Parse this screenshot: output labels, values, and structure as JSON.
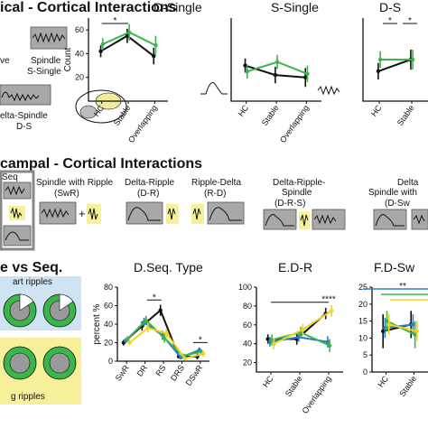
{
  "colors": {
    "black": "#111111",
    "green": "#3ab54a",
    "blue": "#2b7ec9",
    "yellow": "#f2d21b",
    "grey_box": "#a8a8a8",
    "yellow_box": "#f7f09a"
  },
  "sections": {
    "top_title": "ical - Cortical Interactions",
    "mid_title": "campal - Cortical Interactions",
    "bottom_left_title": "e vs Seq."
  },
  "top_left": {
    "wave_label": "ve",
    "spindle_label": "Spindle",
    "s_single_label": "S-Single",
    "delta_spindle_label": "elta-Spindle",
    "ds_label": "D-S"
  },
  "mid": {
    "seq_label": "Seq",
    "events": [
      {
        "name": "Spindle with Ripple",
        "abbr": "(SwR)"
      },
      {
        "name": "Delta-Ripple",
        "abbr": "(D-R)"
      },
      {
        "name": "Ripple-Delta",
        "abbr": "(R-D)"
      },
      {
        "name": "Delta-Ripple-\nSpindle",
        "abbr": "(D-R-S)"
      },
      {
        "name": "Delta\nSpindle with",
        "abbr": "(D-Sw"
      }
    ]
  },
  "bottom_left": {
    "label_top": "art ripples",
    "label_bottom": "g ripples"
  },
  "chart_data": [
    {
      "type": "line",
      "title": "D-Single",
      "ylabel": "Count",
      "categories": [
        "HC",
        "Stable",
        "Overlapping"
      ],
      "series": [
        {
          "color": "#111111",
          "values": [
            42,
            55,
            38
          ],
          "err": [
            5,
            6,
            7
          ]
        },
        {
          "color": "#3ab54a",
          "values": [
            48,
            58,
            47
          ],
          "err": [
            5,
            7,
            8
          ]
        }
      ],
      "annotations": [
        "*"
      ]
    },
    {
      "type": "line",
      "title": "S-Single",
      "categories": [
        "HC",
        "Stable",
        "Overlapping"
      ],
      "series": [
        {
          "color": "#111111",
          "values": [
            30,
            22,
            20
          ],
          "err": [
            6,
            7,
            8
          ]
        },
        {
          "color": "#3ab54a",
          "values": [
            25,
            33,
            23
          ],
          "err": [
            6,
            6,
            7
          ]
        }
      ]
    },
    {
      "type": "line",
      "title": "D-S",
      "categories": [
        "HC",
        "Stable"
      ],
      "series": [
        {
          "color": "#111111",
          "values": [
            18,
            25
          ],
          "err": [
            5,
            6
          ]
        },
        {
          "color": "#3ab54a",
          "values": [
            25,
            25
          ],
          "err": [
            5,
            6
          ]
        }
      ],
      "annotations": [
        "*",
        "*"
      ]
    },
    {
      "type": "line",
      "title": "D.Seq. Type",
      "ylabel": "percent %",
      "ylim": [
        0,
        80
      ],
      "yticks": [
        0,
        20,
        40,
        60,
        80
      ],
      "categories": [
        "SwR",
        "DR",
        "RS",
        "DRS",
        "DSwR"
      ],
      "series": [
        {
          "color": "#111111",
          "values": [
            20,
            38,
            55,
            5,
            5
          ],
          "err": [
            3,
            5,
            6,
            2,
            3
          ]
        },
        {
          "color": "#2b7ec9",
          "values": [
            22,
            42,
            28,
            4,
            12
          ],
          "err": [
            3,
            5,
            5,
            2,
            3
          ]
        },
        {
          "color": "#3ab54a",
          "values": [
            24,
            44,
            25,
            6,
            10
          ],
          "err": [
            3,
            5,
            5,
            2,
            3
          ]
        },
        {
          "color": "#f2d21b",
          "values": [
            20,
            36,
            30,
            3,
            8
          ],
          "err": [
            3,
            5,
            5,
            2,
            3
          ]
        }
      ],
      "annotations": [
        "*",
        "*"
      ]
    },
    {
      "type": "line",
      "title": "E.D-R",
      "ylim": [
        0,
        100
      ],
      "yticks": [
        20,
        40,
        60,
        80,
        100
      ],
      "categories": [
        "HC",
        "Stable",
        "Overlapping"
      ],
      "series": [
        {
          "color": "#111111",
          "values": [
            45,
            45,
            72
          ],
          "err": [
            5,
            6,
            6
          ]
        },
        {
          "color": "#2b7ec9",
          "values": [
            42,
            47,
            42
          ],
          "err": [
            5,
            5,
            6
          ]
        },
        {
          "color": "#3ab54a",
          "values": [
            44,
            52,
            38
          ],
          "err": [
            6,
            6,
            7
          ]
        },
        {
          "color": "#f2d21b",
          "values": [
            40,
            55,
            75
          ],
          "err": [
            6,
            6,
            6
          ]
        }
      ],
      "annotations": [
        "****"
      ]
    },
    {
      "type": "line",
      "title": "F.D-Sw",
      "ylim": [
        0,
        25
      ],
      "yticks": [
        0,
        5,
        10,
        15,
        20,
        25
      ],
      "categories": [
        "HC",
        "Stable"
      ],
      "series": [
        {
          "color": "#111111",
          "values": [
            12,
            14
          ],
          "err": [
            5,
            4
          ]
        },
        {
          "color": "#2b7ec9",
          "values": [
            13,
            14
          ],
          "err": [
            3,
            3
          ]
        },
        {
          "color": "#3ab54a",
          "values": [
            15,
            11
          ],
          "err": [
            3,
            4
          ]
        },
        {
          "color": "#f2d21b",
          "values": [
            14,
            12
          ],
          "err": [
            3,
            3
          ]
        }
      ],
      "annotations": [
        "**"
      ]
    }
  ]
}
